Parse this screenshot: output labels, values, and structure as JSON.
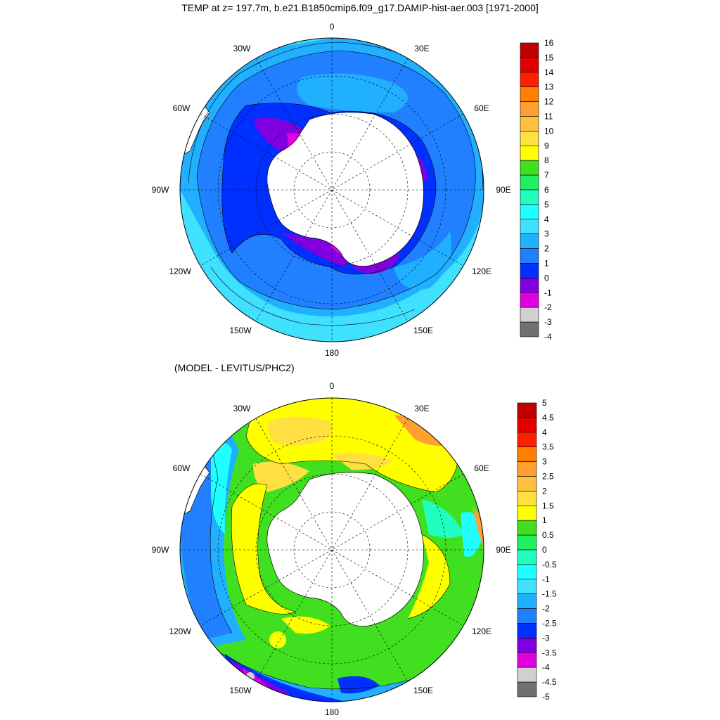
{
  "title": "TEMP at z= 197.7m, b.e21.B1850cmip6.f09_g17.DAMIP-hist-aer.003 [1971-2000]",
  "subtitle": "(MODEL - LEVITUS/PHC2)",
  "longitude_labels": [
    "0",
    "30E",
    "60E",
    "90E",
    "120E",
    "150E",
    "180",
    "150W",
    "120W",
    "90W",
    "60W",
    "30W"
  ],
  "top_map": {
    "colorbar_labels": [
      "16",
      "15",
      "14",
      "13",
      "12",
      "11",
      "10",
      "9",
      "8",
      "7",
      "6",
      "5",
      "4",
      "3",
      "2",
      "1",
      "0",
      "-1",
      "-2",
      "-3",
      "-4"
    ],
    "colors": [
      "#c00000",
      "#e00000",
      "#ff2000",
      "#ff8000",
      "#ffa030",
      "#ffc040",
      "#ffe040",
      "#ffff00",
      "#40e020",
      "#20f060",
      "#20ffc0",
      "#20ffff",
      "#40e0ff",
      "#20b0ff",
      "#2080ff",
      "#0030ff",
      "#8000e0",
      "#e000e0",
      "#d0d0d0",
      "#707070"
    ]
  },
  "bottom_map": {
    "colorbar_labels": [
      "5",
      "4.5",
      "4",
      "3.5",
      "3",
      "2.5",
      "2",
      "1.5",
      "1",
      "0.5",
      "0",
      "-0.5",
      "-1",
      "-1.5",
      "-2",
      "-2.5",
      "-3",
      "-3.5",
      "-4",
      "-4.5",
      "-5"
    ],
    "colors": [
      "#c00000",
      "#e00000",
      "#ff2000",
      "#ff8000",
      "#ffa030",
      "#ffc040",
      "#ffe040",
      "#ffff00",
      "#40e020",
      "#20f060",
      "#20ffc0",
      "#20ffff",
      "#40e0ff",
      "#20b0ff",
      "#2080ff",
      "#0030ff",
      "#8000e0",
      "#e000e0",
      "#d0d0d0",
      "#707070"
    ]
  }
}
